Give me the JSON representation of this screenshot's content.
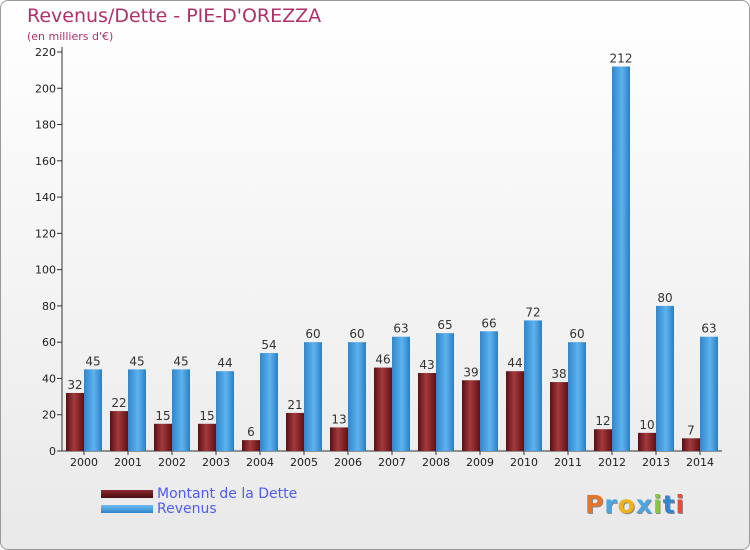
{
  "title": "Revenus/Dette - PIE-D'OREZZA",
  "subtitle": "(en milliers d'€)",
  "logo": "Proxiti",
  "colors": {
    "title": "#b0306a",
    "debt_dark": "#5a0f12",
    "debt_light": "#a33a3e",
    "revenue_dark": "#2f86cc",
    "revenue_light": "#5eb2ee",
    "legend_text": "#4d5cf2"
  },
  "legend": [
    {
      "label": "Montant de la Dette",
      "color": "#6b1418"
    },
    {
      "label": "Revenus",
      "color": "#3f9be3"
    }
  ],
  "chart_data": {
    "type": "bar",
    "title": "Revenus/Dette - PIE-D'OREZZA",
    "ylabel": "(en milliers d'€)",
    "xlabel": "",
    "categories": [
      "2000",
      "2001",
      "2002",
      "2003",
      "2004",
      "2005",
      "2006",
      "2007",
      "2008",
      "2009",
      "2010",
      "2011",
      "2012",
      "2013",
      "2014"
    ],
    "series": [
      {
        "name": "Montant de la Dette",
        "values": [
          32,
          22,
          15,
          15,
          6,
          21,
          13,
          46,
          43,
          39,
          44,
          38,
          12,
          10,
          7
        ]
      },
      {
        "name": "Revenus",
        "values": [
          45,
          45,
          45,
          44,
          54,
          60,
          60,
          63,
          65,
          66,
          72,
          60,
          212,
          80,
          63
        ]
      }
    ],
    "ylim": [
      0,
      220
    ],
    "yticks": [
      0,
      20,
      40,
      60,
      80,
      100,
      120,
      140,
      160,
      180,
      200,
      220
    ],
    "grid": false,
    "legend_position": "bottom-left",
    "data_labels": true
  }
}
